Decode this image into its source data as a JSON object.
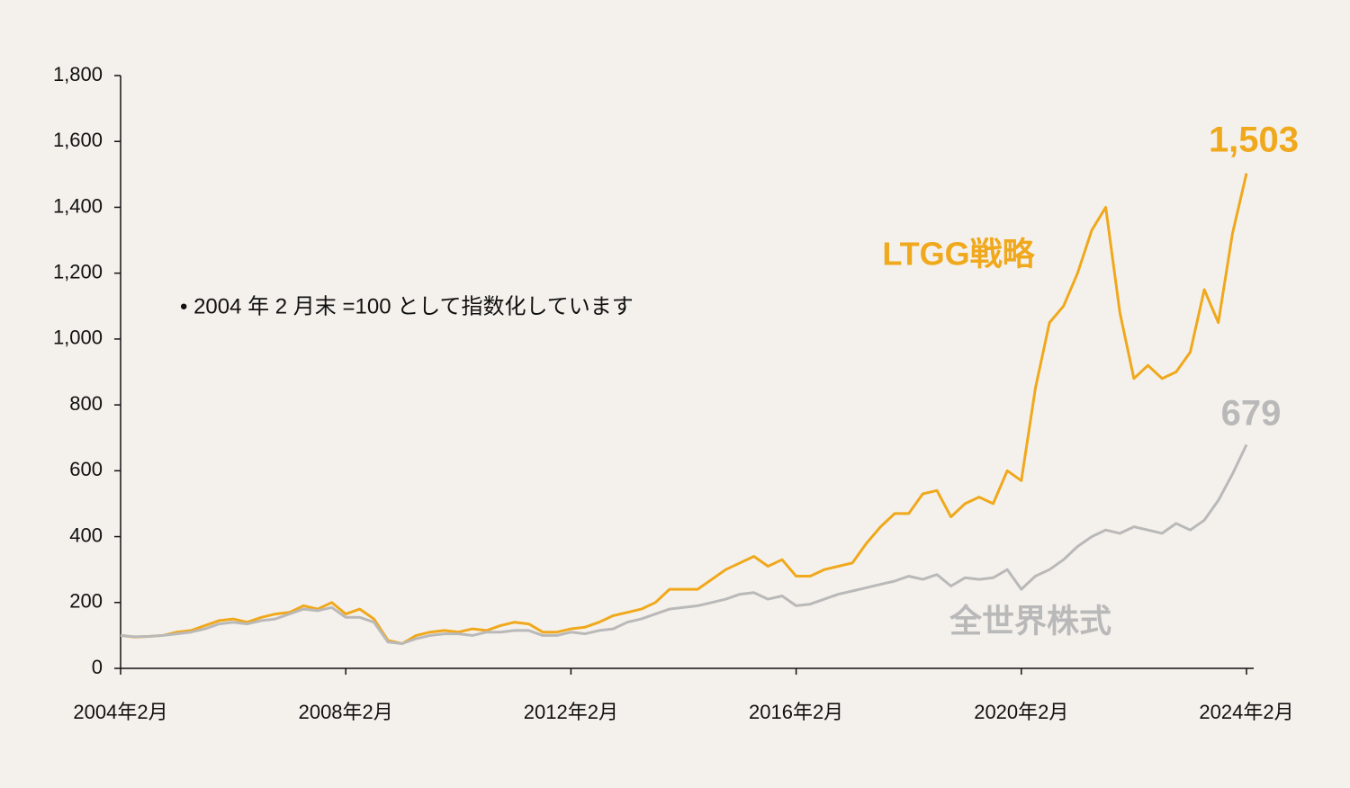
{
  "chart_data": {
    "type": "line",
    "note": "• 2004 年 2 月末 =100 として指数化しています",
    "x": [
      "2004-02",
      "2004-05",
      "2004-08",
      "2004-11",
      "2005-02",
      "2005-05",
      "2005-08",
      "2005-11",
      "2006-02",
      "2006-05",
      "2006-08",
      "2006-11",
      "2007-02",
      "2007-05",
      "2007-08",
      "2007-11",
      "2008-02",
      "2008-05",
      "2008-08",
      "2008-11",
      "2009-02",
      "2009-05",
      "2009-08",
      "2009-11",
      "2010-02",
      "2010-05",
      "2010-08",
      "2010-11",
      "2011-02",
      "2011-05",
      "2011-08",
      "2011-11",
      "2012-02",
      "2012-05",
      "2012-08",
      "2012-11",
      "2013-02",
      "2013-05",
      "2013-08",
      "2013-11",
      "2014-02",
      "2014-05",
      "2014-08",
      "2014-11",
      "2015-02",
      "2015-05",
      "2015-08",
      "2015-11",
      "2016-02",
      "2016-05",
      "2016-08",
      "2016-11",
      "2017-02",
      "2017-05",
      "2017-08",
      "2017-11",
      "2018-02",
      "2018-05",
      "2018-08",
      "2018-11",
      "2019-02",
      "2019-05",
      "2019-08",
      "2019-11",
      "2020-02",
      "2020-05",
      "2020-08",
      "2020-11",
      "2021-02",
      "2021-05",
      "2021-08",
      "2021-11",
      "2022-02",
      "2022-05",
      "2022-08",
      "2022-11",
      "2023-02",
      "2023-05",
      "2023-08",
      "2023-11",
      "2024-02"
    ],
    "series": [
      {
        "name": "LTGG戦略",
        "color": "#f0a81c",
        "values": [
          100,
          95,
          97,
          100,
          110,
          115,
          130,
          145,
          150,
          140,
          155,
          165,
          170,
          190,
          180,
          200,
          165,
          180,
          150,
          85,
          75,
          100,
          110,
          115,
          110,
          120,
          115,
          130,
          140,
          135,
          110,
          110,
          120,
          125,
          140,
          160,
          170,
          180,
          200,
          240,
          240,
          240,
          270,
          300,
          320,
          340,
          310,
          330,
          280,
          280,
          300,
          310,
          320,
          380,
          430,
          470,
          470,
          530,
          540,
          460,
          500,
          520,
          500,
          600,
          570,
          850,
          1050,
          1100,
          1200,
          1330,
          1400,
          1080,
          880,
          920,
          880,
          900,
          960,
          1150,
          1050,
          1320,
          1503
        ],
        "value_labels": [
          null,
          null,
          null,
          null,
          null,
          null,
          null,
          null,
          null,
          null,
          null,
          null,
          null,
          null,
          null,
          null,
          null,
          null,
          null,
          null,
          null,
          null,
          null,
          null,
          null,
          null,
          null,
          null,
          null,
          null,
          null,
          null,
          null,
          null,
          null,
          null,
          null,
          null,
          null,
          null,
          null,
          null,
          null,
          null,
          null,
          null,
          null,
          null,
          null,
          null,
          null,
          null,
          null,
          null,
          null,
          null,
          null,
          null,
          null,
          null,
          null,
          null,
          null,
          null,
          null,
          null,
          null,
          null,
          null,
          null,
          null,
          null,
          null,
          null,
          null,
          null,
          null,
          null,
          null,
          null,
          "1,503"
        ]
      },
      {
        "name": "全世界株式",
        "color": "#b9b9b9",
        "values": [
          100,
          96,
          97,
          100,
          105,
          110,
          120,
          135,
          140,
          135,
          145,
          150,
          165,
          180,
          175,
          185,
          155,
          155,
          140,
          80,
          75,
          90,
          100,
          105,
          105,
          100,
          110,
          110,
          115,
          115,
          100,
          100,
          110,
          105,
          115,
          120,
          140,
          150,
          165,
          180,
          185,
          190,
          200,
          210,
          225,
          230,
          210,
          220,
          190,
          195,
          210,
          225,
          235,
          245,
          255,
          265,
          280,
          270,
          285,
          250,
          275,
          270,
          275,
          300,
          240,
          280,
          300,
          330,
          370,
          400,
          420,
          410,
          430,
          420,
          410,
          440,
          420,
          450,
          510,
          590,
          679
        ],
        "value_labels": [
          null,
          null,
          null,
          null,
          null,
          null,
          null,
          null,
          null,
          null,
          null,
          null,
          null,
          null,
          null,
          null,
          null,
          null,
          null,
          null,
          null,
          null,
          null,
          null,
          null,
          null,
          null,
          null,
          null,
          null,
          null,
          null,
          null,
          null,
          null,
          null,
          null,
          null,
          null,
          null,
          null,
          null,
          null,
          null,
          null,
          null,
          null,
          null,
          null,
          null,
          null,
          null,
          null,
          null,
          null,
          null,
          null,
          null,
          null,
          null,
          null,
          null,
          null,
          null,
          null,
          null,
          null,
          null,
          null,
          null,
          null,
          null,
          null,
          null,
          null,
          null,
          null,
          null,
          null,
          null,
          "679"
        ]
      }
    ],
    "xlim": [
      "2004-02",
      "2024-02"
    ],
    "xticks": [
      {
        "value": "2004-02",
        "label": "2004年2月"
      },
      {
        "value": "2008-02",
        "label": "2008年2月"
      },
      {
        "value": "2012-02",
        "label": "2012年2月"
      },
      {
        "value": "2016-02",
        "label": "2016年2月"
      },
      {
        "value": "2020-02",
        "label": "2020年2月"
      },
      {
        "value": "2024-02",
        "label": "2024年2月"
      }
    ],
    "ylim": [
      0,
      1800
    ],
    "yticks": [
      0,
      200,
      400,
      600,
      800,
      {
        "value": 1000,
        "label": "1,000"
      },
      {
        "value": 1200,
        "label": "1,200"
      },
      {
        "value": 1400,
        "label": "1,400"
      },
      {
        "value": 1600,
        "label": "1,600"
      },
      {
        "value": 1800,
        "label": "1,800"
      }
    ],
    "grid": false
  }
}
